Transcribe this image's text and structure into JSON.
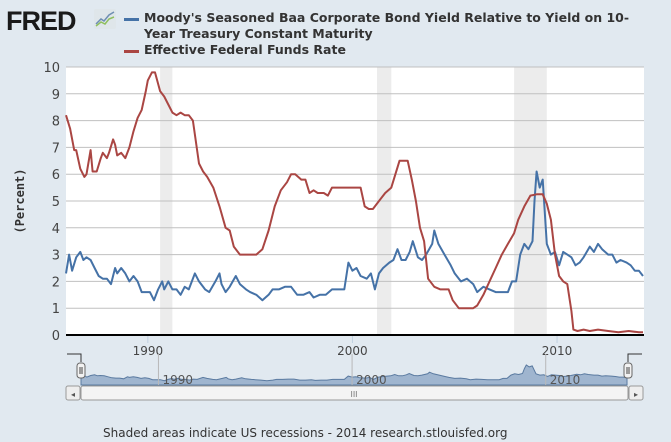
{
  "header": {
    "logo_text": "FRED",
    "logo_icon": "chart-trend-icon"
  },
  "footer": {
    "note": "Shaded areas indicate US recessions - 2014 research.stlouisfed.org"
  },
  "navigator": {
    "labels": [
      "1990",
      "2000",
      "2010"
    ],
    "scroll_grip": "III",
    "left_arrow": "◂",
    "right_arrow": "▸"
  },
  "chart_data": {
    "type": "line",
    "title": "",
    "xlabel": "",
    "ylabel": "(Percent)",
    "xlim": [
      1986.0,
      2014.25
    ],
    "ylim": [
      0,
      10
    ],
    "yticks": [
      "0",
      "1",
      "2",
      "3",
      "4",
      "5",
      "6",
      "7",
      "8",
      "9",
      "10"
    ],
    "xticks": [
      "1990",
      "2000",
      "2010"
    ],
    "grid": true,
    "legend_position": "top",
    "recessions": [
      [
        1990.6,
        1991.2
      ],
      [
        2001.2,
        2001.9
      ],
      [
        2007.9,
        2009.5
      ]
    ],
    "series": [
      {
        "name": "Moody's Seasoned Baa Corporate Bond Yield Relative to Yield on 10-Year Treasury Constant Maturity",
        "legend_lines": [
          "Moody's Seasoned Baa Corporate Bond Yield Relative to Yield on 10-",
          "Year Treasury Constant Maturity"
        ],
        "color": "#4572a7",
        "points": [
          [
            1986.0,
            2.3
          ],
          [
            1986.15,
            3.0
          ],
          [
            1986.3,
            2.4
          ],
          [
            1986.5,
            2.9
          ],
          [
            1986.7,
            3.1
          ],
          [
            1986.85,
            2.8
          ],
          [
            1987.0,
            2.9
          ],
          [
            1987.2,
            2.8
          ],
          [
            1987.4,
            2.5
          ],
          [
            1987.6,
            2.2
          ],
          [
            1987.8,
            2.1
          ],
          [
            1988.0,
            2.1
          ],
          [
            1988.2,
            1.9
          ],
          [
            1988.4,
            2.5
          ],
          [
            1988.5,
            2.3
          ],
          [
            1988.7,
            2.5
          ],
          [
            1988.9,
            2.3
          ],
          [
            1989.1,
            2.0
          ],
          [
            1989.3,
            2.2
          ],
          [
            1989.5,
            2.0
          ],
          [
            1989.7,
            1.6
          ],
          [
            1989.9,
            1.6
          ],
          [
            1990.1,
            1.6
          ],
          [
            1990.3,
            1.3
          ],
          [
            1990.5,
            1.7
          ],
          [
            1990.7,
            2.0
          ],
          [
            1990.8,
            1.7
          ],
          [
            1991.0,
            2.0
          ],
          [
            1991.2,
            1.7
          ],
          [
            1991.4,
            1.7
          ],
          [
            1991.6,
            1.5
          ],
          [
            1991.8,
            1.8
          ],
          [
            1992.0,
            1.7
          ],
          [
            1992.3,
            2.3
          ],
          [
            1992.5,
            2.0
          ],
          [
            1992.8,
            1.7
          ],
          [
            1993.0,
            1.6
          ],
          [
            1993.3,
            2.0
          ],
          [
            1993.5,
            2.3
          ],
          [
            1993.6,
            1.9
          ],
          [
            1993.8,
            1.6
          ],
          [
            1994.0,
            1.8
          ],
          [
            1994.3,
            2.2
          ],
          [
            1994.5,
            1.9
          ],
          [
            1994.8,
            1.7
          ],
          [
            1995.0,
            1.6
          ],
          [
            1995.3,
            1.5
          ],
          [
            1995.6,
            1.3
          ],
          [
            1995.9,
            1.5
          ],
          [
            1996.1,
            1.7
          ],
          [
            1996.4,
            1.7
          ],
          [
            1996.7,
            1.8
          ],
          [
            1997.0,
            1.8
          ],
          [
            1997.3,
            1.5
          ],
          [
            1997.6,
            1.5
          ],
          [
            1997.9,
            1.6
          ],
          [
            1998.1,
            1.4
          ],
          [
            1998.4,
            1.5
          ],
          [
            1998.7,
            1.5
          ],
          [
            1999.0,
            1.7
          ],
          [
            1999.3,
            1.7
          ],
          [
            1999.6,
            1.7
          ],
          [
            1999.8,
            2.7
          ],
          [
            2000.0,
            2.4
          ],
          [
            2000.2,
            2.5
          ],
          [
            2000.4,
            2.2
          ],
          [
            2000.7,
            2.1
          ],
          [
            2000.9,
            2.3
          ],
          [
            2001.1,
            1.7
          ],
          [
            2001.3,
            2.3
          ],
          [
            2001.5,
            2.5
          ],
          [
            2001.8,
            2.7
          ],
          [
            2002.0,
            2.8
          ],
          [
            2002.2,
            3.2
          ],
          [
            2002.4,
            2.8
          ],
          [
            2002.6,
            2.8
          ],
          [
            2002.8,
            3.1
          ],
          [
            2002.95,
            3.5
          ],
          [
            2003.2,
            2.9
          ],
          [
            2003.4,
            2.8
          ],
          [
            2003.6,
            3.0
          ],
          [
            2003.9,
            3.4
          ],
          [
            2004.0,
            3.9
          ],
          [
            2004.2,
            3.4
          ],
          [
            2004.5,
            3.0
          ],
          [
            2004.8,
            2.6
          ],
          [
            2005.0,
            2.3
          ],
          [
            2005.3,
            2.0
          ],
          [
            2005.6,
            2.1
          ],
          [
            2005.9,
            1.9
          ],
          [
            2006.1,
            1.6
          ],
          [
            2006.4,
            1.8
          ],
          [
            2006.7,
            1.7
          ],
          [
            2007.0,
            1.6
          ],
          [
            2007.3,
            1.6
          ],
          [
            2007.6,
            1.6
          ],
          [
            2007.8,
            2.0
          ],
          [
            2008.0,
            2.0
          ],
          [
            2008.2,
            3.0
          ],
          [
            2008.4,
            3.4
          ],
          [
            2008.6,
            3.2
          ],
          [
            2008.8,
            3.5
          ],
          [
            2008.9,
            5.0
          ],
          [
            2009.0,
            6.1
          ],
          [
            2009.15,
            5.5
          ],
          [
            2009.3,
            5.8
          ],
          [
            2009.5,
            3.4
          ],
          [
            2009.7,
            3.0
          ],
          [
            2009.9,
            3.1
          ],
          [
            2010.1,
            2.6
          ],
          [
            2010.3,
            3.1
          ],
          [
            2010.5,
            3.0
          ],
          [
            2010.7,
            2.9
          ],
          [
            2010.9,
            2.6
          ],
          [
            2011.1,
            2.7
          ],
          [
            2011.3,
            2.9
          ],
          [
            2011.6,
            3.3
          ],
          [
            2011.8,
            3.1
          ],
          [
            2012.0,
            3.4
          ],
          [
            2012.2,
            3.2
          ],
          [
            2012.5,
            3.0
          ],
          [
            2012.7,
            3.0
          ],
          [
            2012.9,
            2.7
          ],
          [
            2013.1,
            2.8
          ],
          [
            2013.4,
            2.7
          ],
          [
            2013.6,
            2.6
          ],
          [
            2013.8,
            2.4
          ],
          [
            2014.0,
            2.4
          ],
          [
            2014.2,
            2.2
          ]
        ]
      },
      {
        "name": "Effective Federal Funds Rate",
        "legend_lines": [
          "Effective Federal Funds Rate"
        ],
        "color": "#aa4643",
        "points": [
          [
            1986.0,
            8.2
          ],
          [
            1986.2,
            7.7
          ],
          [
            1986.4,
            6.9
          ],
          [
            1986.5,
            6.9
          ],
          [
            1986.7,
            6.2
          ],
          [
            1986.9,
            5.9
          ],
          [
            1987.0,
            6.0
          ],
          [
            1987.2,
            6.9
          ],
          [
            1987.3,
            6.1
          ],
          [
            1987.5,
            6.1
          ],
          [
            1987.7,
            6.6
          ],
          [
            1987.8,
            6.8
          ],
          [
            1988.0,
            6.6
          ],
          [
            1988.1,
            6.8
          ],
          [
            1988.3,
            7.3
          ],
          [
            1988.4,
            7.1
          ],
          [
            1988.5,
            6.7
          ],
          [
            1988.7,
            6.8
          ],
          [
            1988.9,
            6.6
          ],
          [
            1989.1,
            7.0
          ],
          [
            1989.3,
            7.6
          ],
          [
            1989.5,
            8.1
          ],
          [
            1989.7,
            8.4
          ],
          [
            1989.9,
            9.1
          ],
          [
            1990.0,
            9.5
          ],
          [
            1990.2,
            9.8
          ],
          [
            1990.35,
            9.8
          ],
          [
            1990.6,
            9.1
          ],
          [
            1990.8,
            8.9
          ],
          [
            1991.0,
            8.6
          ],
          [
            1991.2,
            8.3
          ],
          [
            1991.4,
            8.2
          ],
          [
            1991.6,
            8.3
          ],
          [
            1991.8,
            8.2
          ],
          [
            1992.0,
            8.2
          ],
          [
            1992.2,
            8.0
          ],
          [
            1992.5,
            6.4
          ],
          [
            1992.7,
            6.1
          ],
          [
            1992.9,
            5.9
          ],
          [
            1993.2,
            5.5
          ],
          [
            1993.5,
            4.8
          ],
          [
            1993.8,
            4.0
          ],
          [
            1994.0,
            3.9
          ],
          [
            1994.2,
            3.3
          ],
          [
            1994.5,
            3.0
          ],
          [
            1994.8,
            3.0
          ],
          [
            1995.1,
            3.0
          ],
          [
            1995.3,
            3.0
          ],
          [
            1995.6,
            3.2
          ],
          [
            1995.9,
            3.9
          ],
          [
            1996.2,
            4.8
          ],
          [
            1996.5,
            5.4
          ],
          [
            1996.8,
            5.7
          ],
          [
            1997.0,
            6.0
          ],
          [
            1997.2,
            6.0
          ],
          [
            1997.5,
            5.8
          ],
          [
            1997.7,
            5.8
          ],
          [
            1997.9,
            5.3
          ],
          [
            1998.1,
            5.4
          ],
          [
            1998.3,
            5.3
          ],
          [
            1998.6,
            5.3
          ],
          [
            1998.8,
            5.2
          ],
          [
            1999.0,
            5.5
          ],
          [
            1999.3,
            5.5
          ],
          [
            1999.6,
            5.5
          ],
          [
            1999.9,
            5.5
          ],
          [
            2000.1,
            5.5
          ],
          [
            2000.4,
            5.5
          ],
          [
            2000.6,
            4.8
          ],
          [
            2000.8,
            4.7
          ],
          [
            2001.0,
            4.7
          ],
          [
            2001.3,
            5.0
          ],
          [
            2001.6,
            5.3
          ],
          [
            2001.9,
            5.5
          ],
          [
            2002.1,
            6.0
          ],
          [
            2002.3,
            6.5
          ],
          [
            2002.7,
            6.5
          ],
          [
            2002.9,
            5.8
          ],
          [
            2003.1,
            5.0
          ],
          [
            2003.3,
            4.0
          ],
          [
            2003.5,
            3.5
          ],
          [
            2003.7,
            2.1
          ],
          [
            2004.0,
            1.8
          ],
          [
            2004.3,
            1.7
          ],
          [
            2004.7,
            1.7
          ],
          [
            2004.9,
            1.3
          ],
          [
            2005.2,
            1.0
          ],
          [
            2005.6,
            1.0
          ],
          [
            2005.9,
            1.0
          ],
          [
            2006.1,
            1.1
          ],
          [
            2006.4,
            1.5
          ],
          [
            2006.7,
            2.0
          ],
          [
            2007.0,
            2.5
          ],
          [
            2007.3,
            3.0
          ],
          [
            2007.6,
            3.4
          ],
          [
            2007.9,
            3.8
          ],
          [
            2008.1,
            4.3
          ],
          [
            2008.4,
            4.8
          ],
          [
            2008.7,
            5.2
          ],
          [
            2009.0,
            5.25
          ],
          [
            2009.3,
            5.25
          ],
          [
            2009.5,
            4.9
          ],
          [
            2009.7,
            4.3
          ],
          [
            2009.9,
            3.0
          ],
          [
            2010.1,
            2.2
          ],
          [
            2010.3,
            2.0
          ],
          [
            2010.5,
            1.9
          ],
          [
            2010.7,
            0.9
          ],
          [
            2010.8,
            0.2
          ],
          [
            2011.0,
            0.15
          ],
          [
            2011.3,
            0.2
          ],
          [
            2011.6,
            0.15
          ],
          [
            2012.0,
            0.2
          ],
          [
            2012.5,
            0.15
          ],
          [
            2013.0,
            0.1
          ],
          [
            2013.5,
            0.15
          ],
          [
            2014.0,
            0.1
          ],
          [
            2014.2,
            0.1
          ]
        ]
      }
    ]
  }
}
